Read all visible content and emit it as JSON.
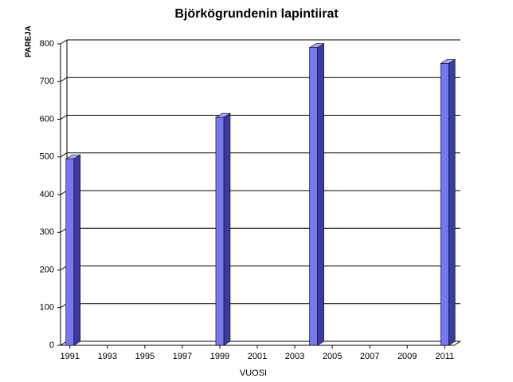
{
  "chart_data": {
    "type": "bar3d",
    "title": "Björkögrundenin lapintiirat",
    "x_label": "VUOSI",
    "y_label": "PAREJA",
    "x": [
      1991,
      1999,
      2004,
      2011
    ],
    "values": [
      495,
      605,
      790,
      748
    ],
    "color": "#7777ee",
    "xlim": [
      1990.5,
      2011.5
    ],
    "xticks": [
      1991,
      1993,
      1995,
      1997,
      1999,
      2001,
      2003,
      2005,
      2007,
      2009,
      2011
    ],
    "ylim": [
      0,
      800
    ],
    "yticks": [
      0,
      100,
      200,
      300,
      400,
      500,
      600,
      700,
      800
    ],
    "grid": true
  }
}
